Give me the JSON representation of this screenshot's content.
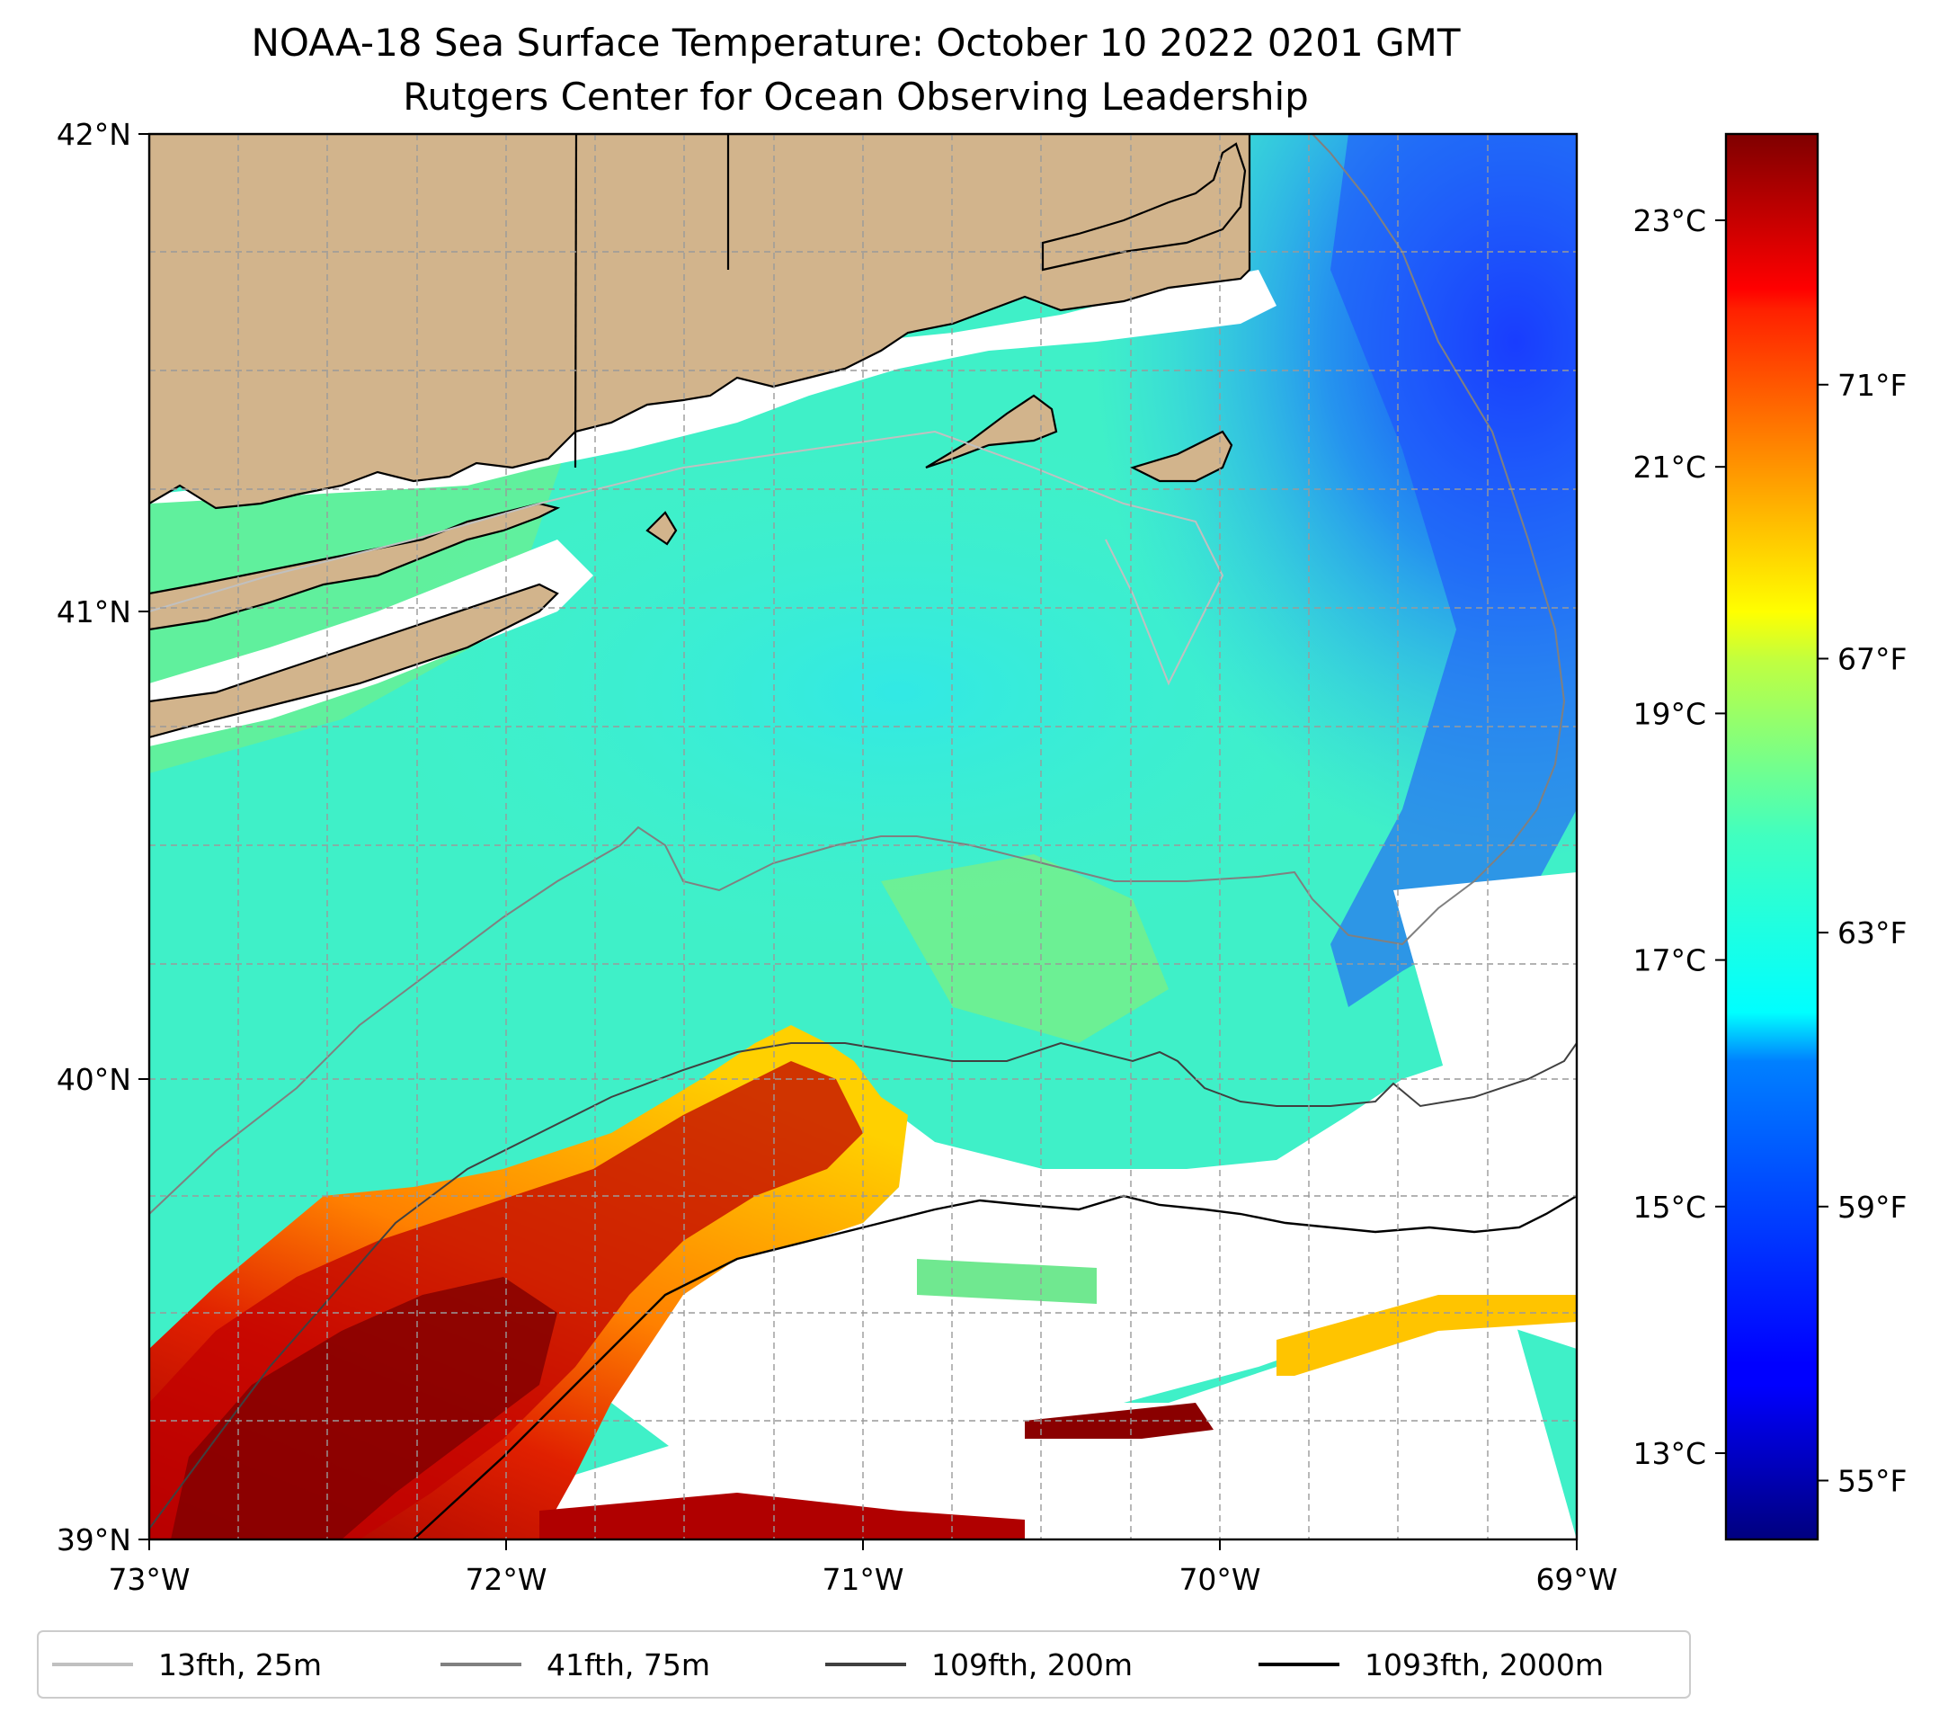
{
  "title": {
    "line1": "NOAA-18 Sea Surface Temperature: October 10 2022 0201 GMT",
    "line2": "Rutgers Center for Ocean Observing Leadership"
  },
  "map": {
    "lon_range": [
      -73,
      -69
    ],
    "lat_range": [
      39,
      42
    ],
    "x_ticks": [
      "73°W",
      "72°W",
      "71°W",
      "70°W",
      "69°W"
    ],
    "y_ticks": [
      "42°N",
      "41°N",
      "40°N",
      "39°N"
    ],
    "land_color": "#d2b48c",
    "grid": true
  },
  "colorbar": {
    "colormap": "jet",
    "celsius_ticks": [
      "23°C",
      "21°C",
      "19°C",
      "17°C",
      "15°C",
      "13°C"
    ],
    "fahrenheit_ticks": [
      "71°F",
      "67°F",
      "63°F",
      "59°F",
      "55°F"
    ],
    "celsius_values": [
      23,
      21,
      19,
      17,
      15,
      13
    ],
    "fahrenheit_values": [
      71,
      67,
      63,
      59,
      55
    ],
    "range_celsius": [
      12.3,
      23.7
    ]
  },
  "legend": {
    "items": [
      {
        "label": "13fth, 25m",
        "color": "#c0c0c0"
      },
      {
        "label": "41fth, 75m",
        "color": "#808080"
      },
      {
        "label": "109fth, 200m",
        "color": "#404040"
      },
      {
        "label": "1093fth, 2000m",
        "color": "#000000"
      }
    ]
  }
}
